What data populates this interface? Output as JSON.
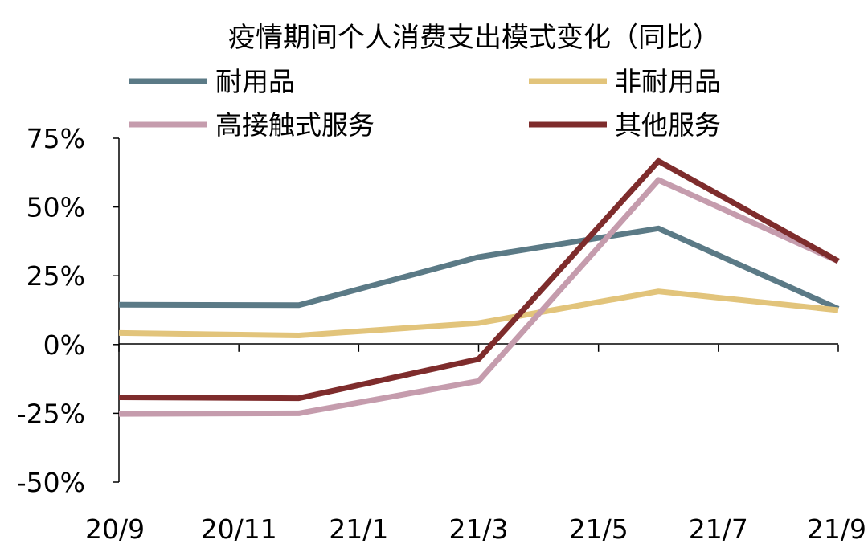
{
  "chart_data": {
    "type": "line",
    "title": "疫情期间个人消费支出模式变化（同比）",
    "xlabel": "",
    "ylabel": "",
    "x_ticks": [
      "20/9",
      "20/11",
      "21/1",
      "21/3",
      "21/5",
      "21/7",
      "21/9"
    ],
    "x": [
      "20/9",
      "20/12",
      "21/3",
      "21/6",
      "21/9"
    ],
    "ylim": [
      -50,
      75
    ],
    "y_ticks": [
      -50,
      -25,
      0,
      25,
      50,
      75
    ],
    "y_tick_labels": [
      "-50%",
      "-25%",
      "0%",
      "25%",
      "50%",
      "75%"
    ],
    "grid": false,
    "legend_position": "top",
    "series": [
      {
        "name": "耐用品",
        "color": "#5B7A86",
        "values": [
          14.5,
          14.3,
          31.8,
          42.2,
          13.0
        ]
      },
      {
        "name": "非耐用品",
        "color": "#E2C47B",
        "values": [
          4.2,
          3.3,
          7.8,
          19.3,
          12.5
        ]
      },
      {
        "name": "高接触式服务",
        "color": "#C59CAD",
        "values": [
          -25.2,
          -25.0,
          -13.3,
          59.8,
          30.3
        ]
      },
      {
        "name": "其他服务",
        "color": "#7E2C2C",
        "values": [
          -19.2,
          -19.5,
          -5.3,
          66.7,
          30.3
        ]
      }
    ]
  }
}
